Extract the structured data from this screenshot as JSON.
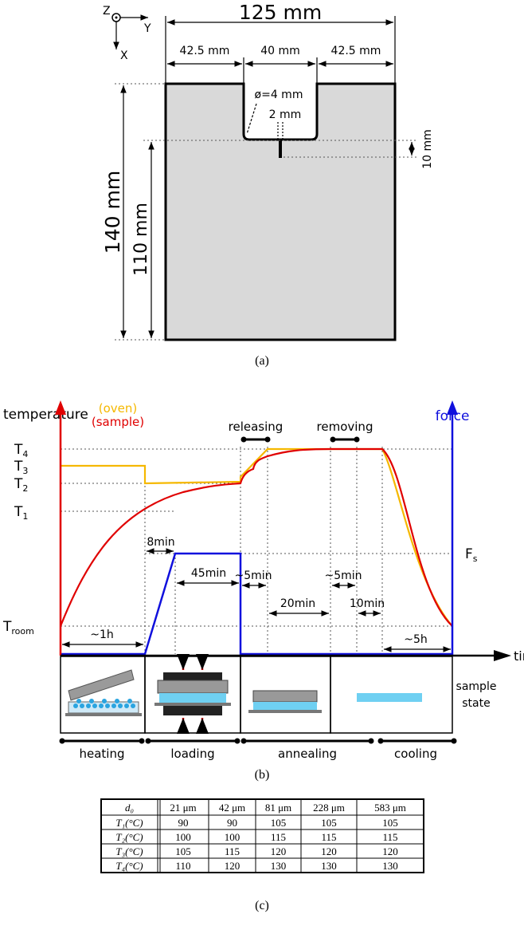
{
  "figure_a": {
    "axes": {
      "z": "Z",
      "y": "Y",
      "x": "X"
    },
    "width_total": "125 mm",
    "width_left": "42.5 mm",
    "width_notch": "40 mm",
    "width_right": "42.5 mm",
    "notch_radius": "ø=4 mm",
    "slit_width": "2 mm",
    "slit_depth": "10 mm",
    "height_total": "140 mm",
    "height_ligament": "110 mm",
    "caption": "(a)"
  },
  "figure_b": {
    "y_left_label": "temperature",
    "legend_oven": "(oven)",
    "legend_sample": "(sample)",
    "y_right_label": "force",
    "x_label": "time",
    "levels": [
      {
        "base": "T",
        "sub": "4"
      },
      {
        "base": "T",
        "sub": "3"
      },
      {
        "base": "T",
        "sub": "2"
      },
      {
        "base": "T",
        "sub": "1"
      },
      {
        "base": "T",
        "sub": "room"
      }
    ],
    "force_level": {
      "base": "F",
      "sub": "s"
    },
    "events": [
      "releasing",
      "removing"
    ],
    "durations": [
      "8min",
      "45min",
      "~5min",
      "20min",
      "~5min",
      "10min",
      "~1h",
      "~5h"
    ],
    "sample_state": [
      "sample",
      "state"
    ],
    "phases": [
      "heating",
      "loading",
      "annealing",
      "cooling"
    ],
    "caption": "(b)"
  },
  "table": {
    "header": [
      "d₀",
      "21 μm",
      "42 μm",
      "81 μm",
      "228 μm",
      "583 μm"
    ],
    "rows": [
      [
        "T₁(°C)",
        "90",
        "90",
        "105",
        "105",
        "105"
      ],
      [
        "T₂(°C)",
        "100",
        "100",
        "115",
        "115",
        "115"
      ],
      [
        "T₃(°C)",
        "105",
        "115",
        "120",
        "120",
        "120"
      ],
      [
        "T₄(°C)",
        "110",
        "120",
        "130",
        "130",
        "130"
      ]
    ],
    "caption": "(c)"
  }
}
